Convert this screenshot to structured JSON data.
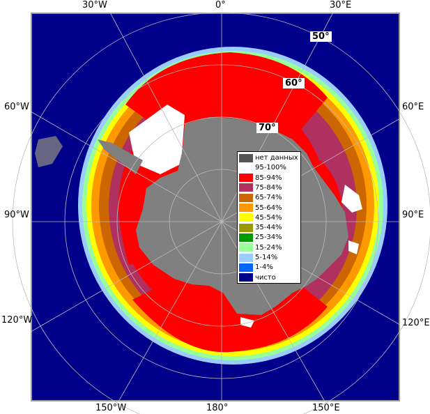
{
  "map": {
    "meridian_labels": {
      "top": [
        "30°W",
        "0°",
        "30°E"
      ],
      "left": [
        "60°W",
        "90°W",
        "120°W"
      ],
      "right": [
        "60°E",
        "90°E",
        "120°E"
      ],
      "bottom": [
        "150°W",
        "180°",
        "150°E"
      ]
    },
    "parallel_labels": [
      "50°",
      "60°",
      "70°"
    ],
    "colors": {
      "ocean": "#00008b",
      "land": "#808080",
      "no_data": "#555555",
      "grid": "#aaaaaa",
      "frame": "#999999"
    }
  },
  "legend": {
    "items": [
      {
        "label": "нет данных",
        "color": "#555555"
      },
      {
        "label": "95-100%",
        "color": "#ffffff"
      },
      {
        "label": "85-94%",
        "color": "#ff0000"
      },
      {
        "label": "75-84%",
        "color": "#b03060"
      },
      {
        "label": "65-74%",
        "color": "#cc6600"
      },
      {
        "label": "55-64%",
        "color": "#ff9900"
      },
      {
        "label": "45-54%",
        "color": "#ffff00"
      },
      {
        "label": "35-44%",
        "color": "#999900"
      },
      {
        "label": "25-34%",
        "color": "#009900"
      },
      {
        "label": "15-24%",
        "color": "#99ff99"
      },
      {
        "label": "5-14%",
        "color": "#99ccff"
      },
      {
        "label": "1-4%",
        "color": "#0066ff"
      },
      {
        "label": "чисто",
        "color": "#00008b"
      }
    ]
  }
}
